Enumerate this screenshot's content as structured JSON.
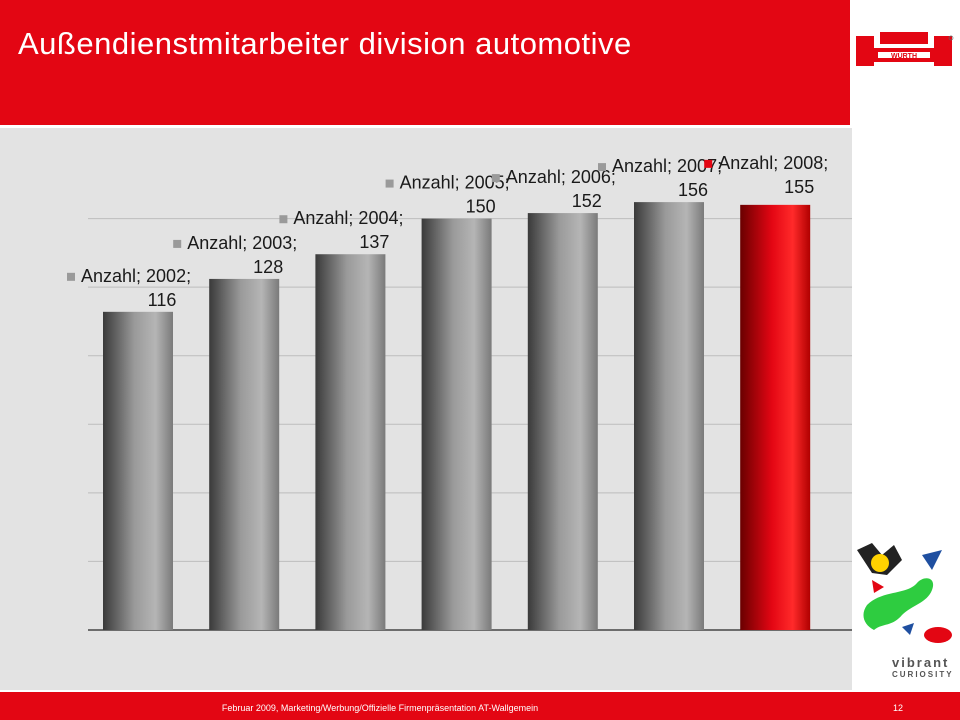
{
  "slide": {
    "title": "Außendienstmitarbeiter division automotive",
    "footer": "Februar 2009, Marketing/Werbung/Offizielle Firmenpräsentation AT-Wallgemein",
    "page_number": "12",
    "brand": "WÜRTH",
    "slogan_line1": "vibrant",
    "slogan_line2": "CURIOSITY"
  },
  "colors": {
    "brand_red": "#e30613",
    "bar_gray": "#9a9a9a",
    "highlight_red": "#e30613",
    "panel_bg": "#e3e3e3"
  },
  "chart_data": {
    "type": "bar",
    "series_name": "Anzahl",
    "categories": [
      "2002",
      "2003",
      "2004",
      "2005",
      "2006",
      "2007",
      "2008"
    ],
    "values": [
      116,
      128,
      137,
      150,
      152,
      156,
      155
    ],
    "highlight_index": 6,
    "ylim": [
      0,
      175
    ],
    "gridlines": true,
    "data_labels": [
      [
        "Anzahl; 2002;",
        "116"
      ],
      [
        "Anzahl; 2003;",
        "128"
      ],
      [
        "Anzahl; 2004;",
        "137"
      ],
      [
        "Anzahl; 2005;",
        "150"
      ],
      [
        "Anzahl; 2006;",
        "152"
      ],
      [
        "Anzahl; 2007;",
        "156"
      ],
      [
        "Anzahl; 2008;",
        "155"
      ]
    ]
  }
}
